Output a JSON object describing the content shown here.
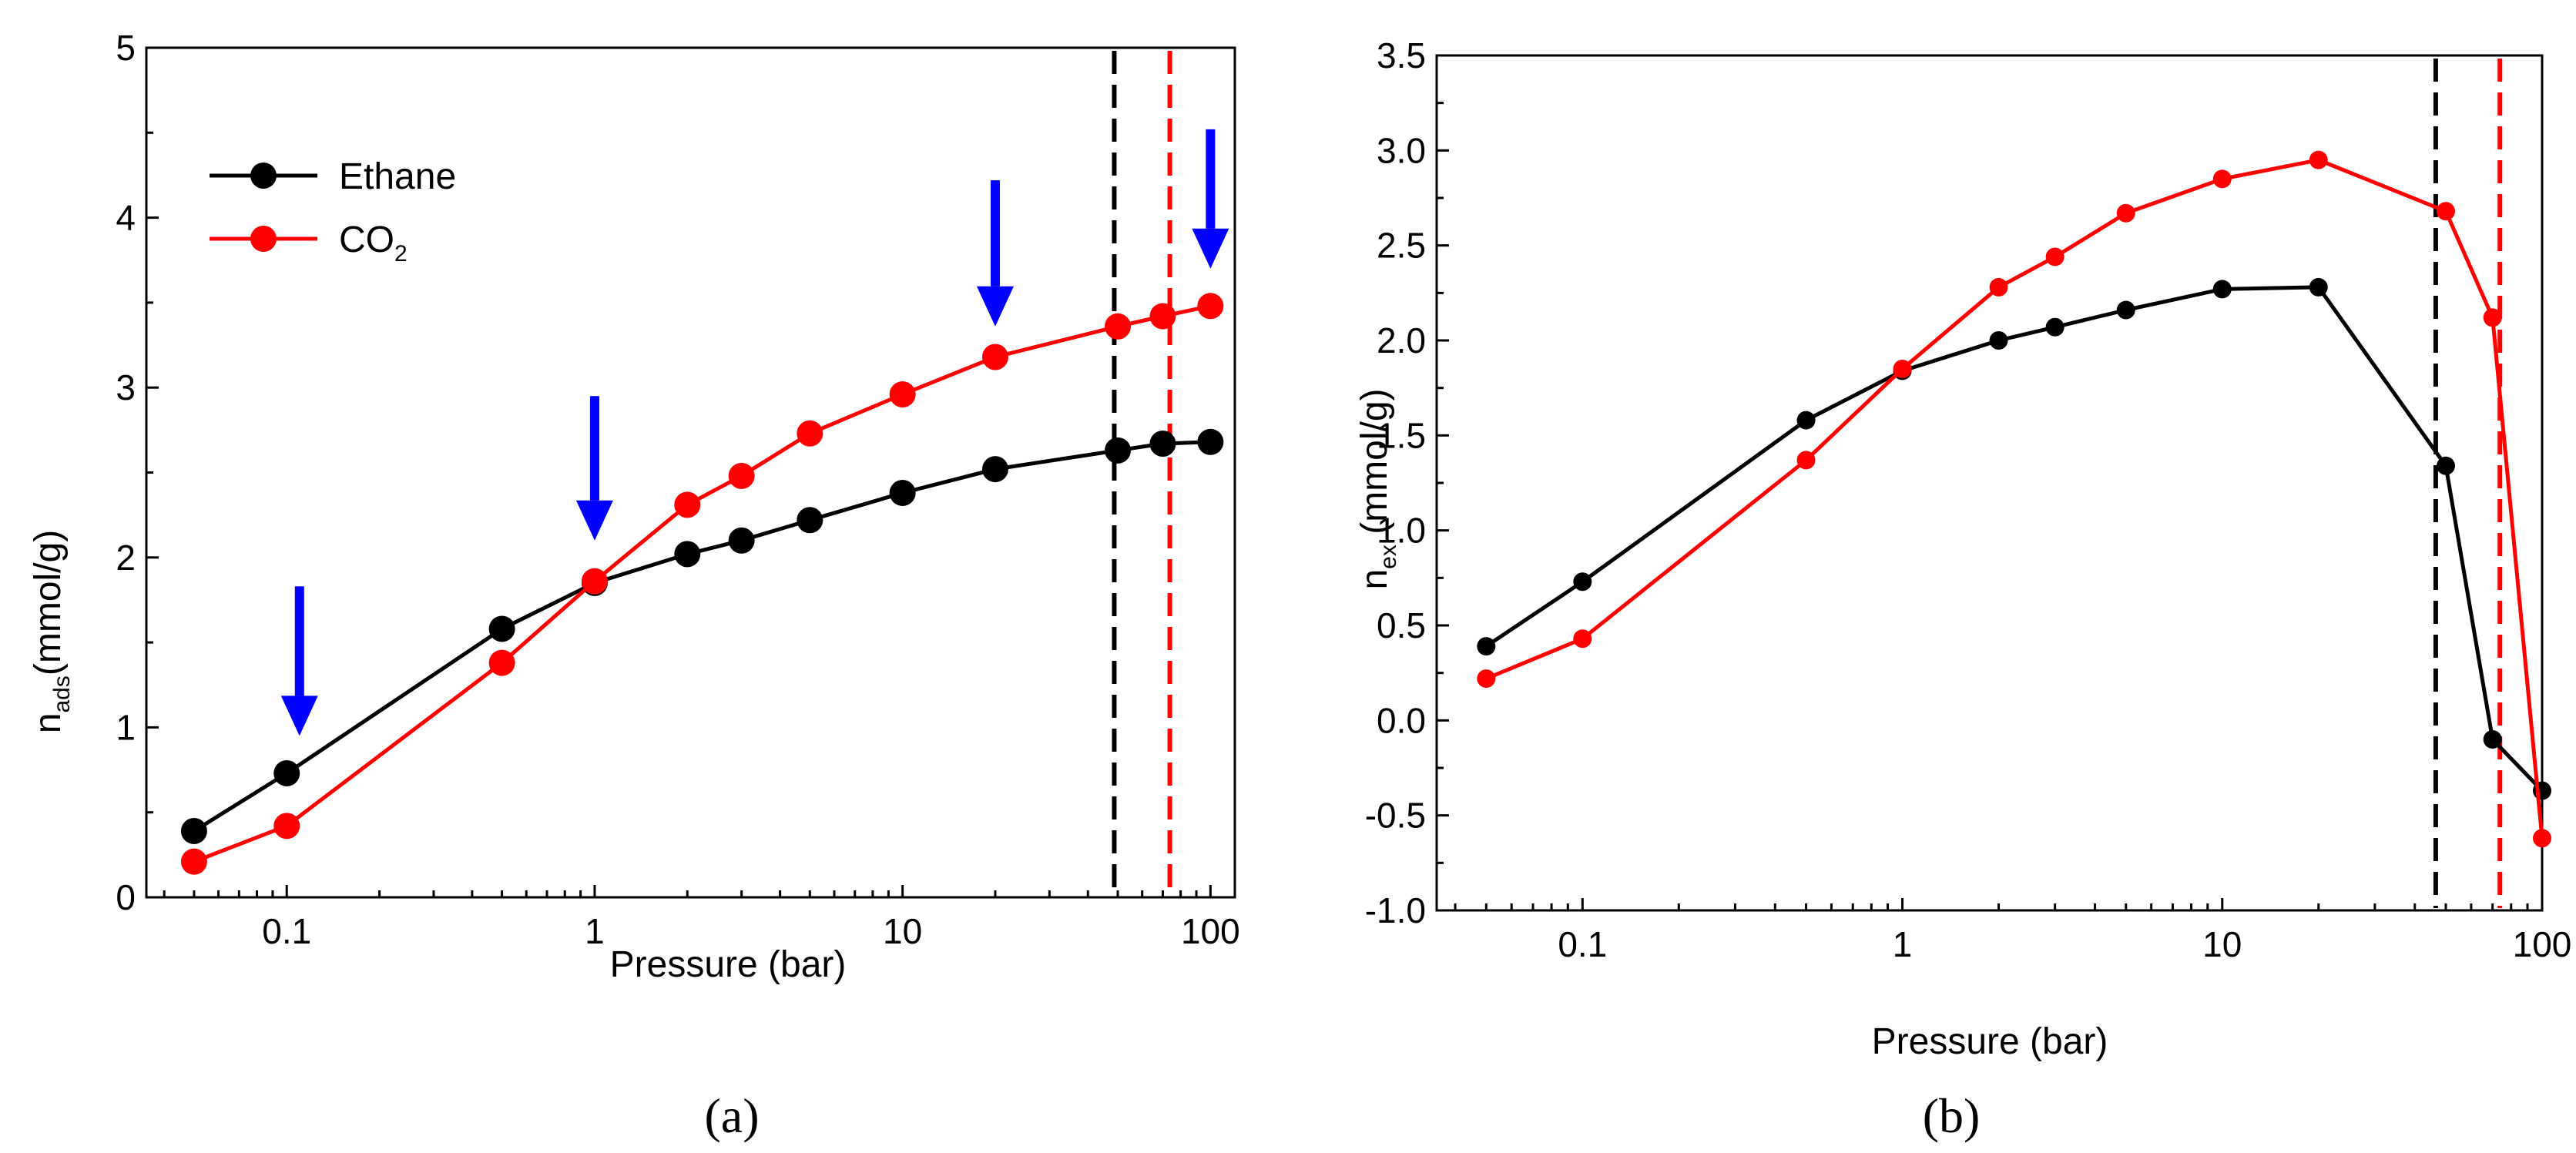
{
  "chart_data": [
    {
      "type": "line",
      "id": "a",
      "caption": "(a)",
      "xlabel": "Pressure (bar)",
      "xscale": "log",
      "xlim": [
        0.035,
        120
      ],
      "xticks": [
        "0.1",
        "1",
        "10",
        "100"
      ],
      "ylabel_main": "n",
      "ylabel_sub": "ads",
      "ylabel_unit": "(mmol/g)",
      "ylim": [
        0,
        5
      ],
      "yticks": [
        "0",
        "1",
        "2",
        "3",
        "4",
        "5"
      ],
      "legend": {
        "placement": "top-left",
        "entries": [
          "Ethane",
          "CO2"
        ],
        "labels": [
          "Ethane",
          "CO",
          "2"
        ]
      },
      "series": [
        {
          "name": "Ethane",
          "color": "#000000",
          "x": [
            0.05,
            0.1,
            0.5,
            1,
            2,
            3,
            5,
            10,
            20,
            50,
            70,
            100
          ],
          "y": [
            0.39,
            0.73,
            1.58,
            1.85,
            2.02,
            2.1,
            2.22,
            2.38,
            2.52,
            2.63,
            2.67,
            2.68
          ]
        },
        {
          "name": "CO2",
          "color": "#ff0000",
          "x": [
            0.05,
            0.1,
            0.5,
            1,
            2,
            3,
            5,
            10,
            20,
            50,
            70,
            100
          ],
          "y": [
            0.21,
            0.42,
            1.38,
            1.86,
            2.31,
            2.48,
            2.73,
            2.96,
            3.18,
            3.36,
            3.42,
            3.48
          ]
        }
      ],
      "vlines": [
        {
          "x": 48.7,
          "color": "#000000",
          "style": "dashed"
        },
        {
          "x": 73.8,
          "color": "#ff0000",
          "style": "dashed"
        }
      ],
      "arrows": [
        {
          "x": 0.11,
          "y_from": 1.83,
          "y_to": 0.95,
          "color": "#0000ff"
        },
        {
          "x": 1.0,
          "y_from": 2.95,
          "y_to": 2.1,
          "color": "#0000ff"
        },
        {
          "x": 20,
          "y_from": 4.22,
          "y_to": 3.36,
          "color": "#0000ff"
        },
        {
          "x": 100,
          "y_from": 4.52,
          "y_to": 3.7,
          "color": "#0000ff"
        }
      ]
    },
    {
      "type": "line",
      "id": "b",
      "caption": "(b)",
      "xlabel": "Pressure (bar)",
      "xscale": "log",
      "xlim": [
        0.035,
        100
      ],
      "xticks": [
        "0.1",
        "1",
        "10",
        "100"
      ],
      "ylabel_main": "n",
      "ylabel_sub": "ex",
      "ylabel_unit": " (mmol/g)",
      "ylim": [
        -1.0,
        3.5
      ],
      "yticks": [
        "-1.0",
        "-0.5",
        "0.0",
        "0.5",
        "1.0",
        "1.5",
        "2.0",
        "2.5",
        "3.0",
        "3.5"
      ],
      "series": [
        {
          "name": "Ethane",
          "color": "#000000",
          "x": [
            0.05,
            0.1,
            0.5,
            1,
            2,
            3,
            5,
            10,
            20,
            50,
            70,
            100
          ],
          "y": [
            0.39,
            0.73,
            1.58,
            1.84,
            2.0,
            2.07,
            2.16,
            2.27,
            2.28,
            1.34,
            -0.1,
            -0.37
          ]
        },
        {
          "name": "CO2",
          "color": "#ff0000",
          "x": [
            0.05,
            0.1,
            0.5,
            1,
            2,
            3,
            5,
            10,
            20,
            50,
            70,
            100
          ],
          "y": [
            0.22,
            0.43,
            1.37,
            1.85,
            2.28,
            2.44,
            2.67,
            2.85,
            2.95,
            2.68,
            2.12,
            -0.62
          ]
        }
      ],
      "vlines": [
        {
          "x": 46.5,
          "color": "#000000",
          "style": "dashed"
        },
        {
          "x": 73.8,
          "color": "#ff0000",
          "style": "dashed"
        }
      ]
    }
  ]
}
